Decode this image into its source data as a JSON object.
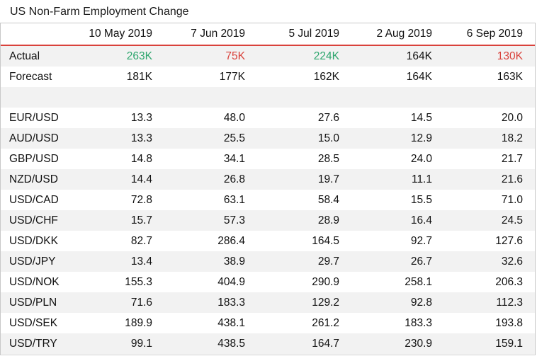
{
  "title": "US Non-Farm Employment Change",
  "headers": [
    "",
    "10 May 2019",
    "7 Jun 2019",
    "5 Jul 2019",
    "2 Aug 2019",
    "6 Sep 2019"
  ],
  "actual": {
    "label": "Actual",
    "values": [
      "263K",
      "75K",
      "224K",
      "164K",
      "130K"
    ],
    "status": [
      "up",
      "down",
      "up",
      "neutral",
      "down"
    ]
  },
  "forecast": {
    "label": "Forecast",
    "values": [
      "181K",
      "177K",
      "162K",
      "164K",
      "163K"
    ]
  },
  "pairs": [
    {
      "label": "EUR/USD",
      "values": [
        "13.3",
        "48.0",
        "27.6",
        "14.5",
        "20.0"
      ]
    },
    {
      "label": "AUD/USD",
      "values": [
        "13.3",
        "25.5",
        "15.0",
        "12.9",
        "18.2"
      ]
    },
    {
      "label": "GBP/USD",
      "values": [
        "14.8",
        "34.1",
        "28.5",
        "24.0",
        "21.7"
      ]
    },
    {
      "label": "NZD/USD",
      "values": [
        "14.4",
        "26.8",
        "19.7",
        "11.1",
        "21.6"
      ]
    },
    {
      "label": "USD/CAD",
      "values": [
        "72.8",
        "63.1",
        "58.4",
        "15.5",
        "71.0"
      ]
    },
    {
      "label": "USD/CHF",
      "values": [
        "15.7",
        "57.3",
        "28.9",
        "16.4",
        "24.5"
      ]
    },
    {
      "label": "USD/DKK",
      "values": [
        "82.7",
        "286.4",
        "164.5",
        "92.7",
        "127.6"
      ]
    },
    {
      "label": "USD/JPY",
      "values": [
        "13.4",
        "38.9",
        "29.7",
        "26.7",
        "32.6"
      ]
    },
    {
      "label": "USD/NOK",
      "values": [
        "155.3",
        "404.9",
        "290.9",
        "258.1",
        "206.3"
      ]
    },
    {
      "label": "USD/PLN",
      "values": [
        "71.6",
        "183.3",
        "129.2",
        "92.8",
        "112.3"
      ]
    },
    {
      "label": "USD/SEK",
      "values": [
        "189.9",
        "438.1",
        "261.2",
        "183.3",
        "193.8"
      ]
    },
    {
      "label": "USD/TRY",
      "values": [
        "99.1",
        "438.5",
        "164.7",
        "230.9",
        "159.1"
      ]
    }
  ],
  "colors": {
    "up": "#2ea66e",
    "down": "#d9423b",
    "header_rule": "#d9423b",
    "stripe": "#f2f2f2"
  }
}
